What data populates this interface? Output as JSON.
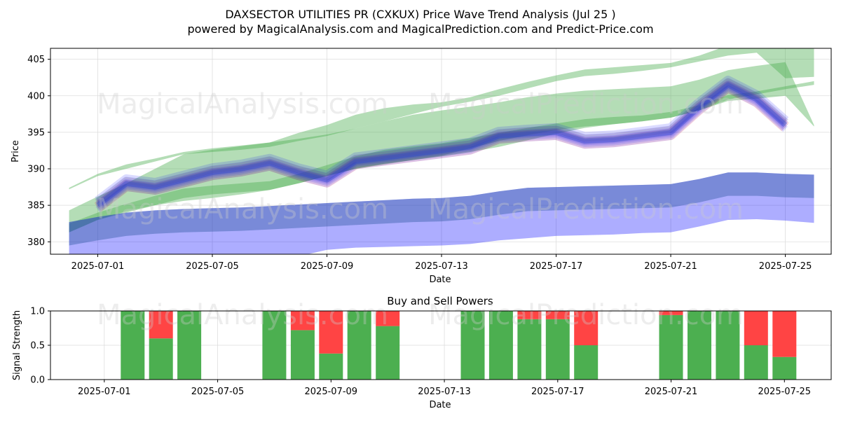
{
  "title_line1": "DAXSECTOR UTILITIES PR (CXKUX) Price Wave Trend Analysis (Jul 25 )",
  "title_line2": "powered by MagicalAnalysis.com and MagicalPrediction.com and Predict-Price.com",
  "watermarks": {
    "top_left_upper": "MagicalAnalysis.com",
    "top_right_upper": "MagicalPrediction.com",
    "top_left_lower": "MagicalAnalysis.com",
    "top_right_lower": "MagicalPrediction.com",
    "bottom_left": "MagicalAnalysis.com",
    "bottom_right": "MagicalPrediction.com"
  },
  "colors": {
    "green_band": "#4caf50",
    "blue_band": "#0000ff",
    "red_band": "#ff0000",
    "buy_bar": "#4caf50",
    "sell_bar": "#ff4444",
    "grid": "#dddddd"
  },
  "chart_data": [
    {
      "type": "area",
      "title": "",
      "xlabel": "Date",
      "ylabel": "Price",
      "x_ticks": [
        "2025-07-01",
        "2025-07-05",
        "2025-07-09",
        "2025-07-13",
        "2025-07-17",
        "2025-07-21",
        "2025-07-25"
      ],
      "y_ticks": [
        380,
        385,
        390,
        395,
        400,
        405
      ],
      "xlim": [
        "2025-06-30",
        "2025-07-26"
      ],
      "ylim": [
        378.3,
        406.5
      ],
      "grid": true,
      "dates": [
        "2025-06-30",
        "2025-07-01",
        "2025-07-02",
        "2025-07-03",
        "2025-07-04",
        "2025-07-05",
        "2025-07-06",
        "2025-07-07",
        "2025-07-08",
        "2025-07-09",
        "2025-07-10",
        "2025-07-11",
        "2025-07-12",
        "2025-07-13",
        "2025-07-14",
        "2025-07-15",
        "2025-07-16",
        "2025-07-17",
        "2025-07-18",
        "2025-07-19",
        "2025-07-20",
        "2025-07-21",
        "2025-07-22",
        "2025-07-23",
        "2025-07-24",
        "2025-07-25",
        "2025-07-26"
      ],
      "series": [
        {
          "kind": "green_band_upper",
          "low": [
            387.2,
            389.0,
            390.0,
            391.0,
            392.0,
            392.3,
            392.6,
            393.0,
            393.8,
            394.5,
            395.5,
            396.5,
            397.5,
            398.5,
            399.2,
            400.0,
            401.0,
            402.0,
            402.7,
            403.0,
            403.4,
            403.9,
            404.7,
            405.5,
            405.9,
            402.4,
            402.6
          ],
          "high": [
            387.4,
            389.3,
            390.6,
            391.4,
            392.3,
            392.8,
            393.2,
            393.6,
            394.9,
            396.0,
            397.4,
            398.3,
            398.8,
            399.1,
            399.8,
            400.9,
            401.9,
            402.8,
            403.6,
            403.9,
            404.2,
            404.5,
            405.5,
            406.9,
            406.8,
            406.5,
            406.6
          ]
        },
        {
          "kind": "green_band_middle",
          "low": [
            381.3,
            383.0,
            384.0,
            385.0,
            386.0,
            386.5,
            386.8,
            387.1,
            388.0,
            389.0,
            390.0,
            390.7,
            391.2,
            391.7,
            392.3,
            393.0,
            393.9,
            394.8,
            395.6,
            396.1,
            396.5,
            397.0,
            398.0,
            399.5,
            400.2,
            400.9,
            401.5
          ],
          "high": [
            382.5,
            384.0,
            385.2,
            386.3,
            387.3,
            387.7,
            388.0,
            388.3,
            389.3,
            390.5,
            391.7,
            392.6,
            393.1,
            393.5,
            394.2,
            394.9,
            395.6,
            396.2,
            396.8,
            397.1,
            397.3,
            397.8,
            398.7,
            400.1,
            400.6,
            401.3,
            402.0
          ]
        },
        {
          "kind": "green_band_lower",
          "low": [
            381.3,
            383.0,
            384.2,
            385.0,
            385.6,
            386.0,
            386.5,
            387.1,
            388.0,
            389.0,
            390.0,
            390.6,
            391.2,
            391.8,
            392.8,
            393.8,
            394.6,
            395.3,
            395.8,
            396.1,
            396.5,
            397.0,
            398.0,
            399.3,
            399.6,
            400.0,
            395.8
          ],
          "high": [
            384.3,
            386.2,
            388.0,
            390.0,
            392.0,
            392.6,
            393.1,
            393.6,
            394.1,
            394.7,
            395.5,
            396.5,
            397.4,
            398.0,
            398.5,
            399.1,
            399.8,
            400.3,
            400.7,
            400.9,
            401.1,
            401.3,
            402.2,
            403.5,
            404.1,
            404.6,
            396.0
          ]
        },
        {
          "kind": "blue_band",
          "low": [
            378.0,
            378.0,
            378.0,
            378.0,
            378.0,
            378.0,
            378.0,
            378.0,
            378.0,
            378.9,
            379.2,
            379.3,
            379.4,
            379.5,
            379.7,
            380.2,
            380.5,
            380.8,
            380.9,
            381.0,
            381.2,
            381.3,
            382.1,
            383.0,
            383.1,
            382.9,
            382.6
          ],
          "high": [
            382.7,
            383.4,
            384.0,
            384.3,
            384.5,
            384.6,
            384.7,
            384.9,
            385.1,
            385.3,
            385.5,
            385.7,
            385.9,
            386.0,
            386.3,
            386.9,
            387.4,
            387.5,
            387.6,
            387.7,
            387.8,
            387.9,
            388.6,
            389.5,
            389.5,
            389.3,
            389.2
          ]
        },
        {
          "kind": "price_wave",
          "values": [
            null,
            385.0,
            388.0,
            387.5,
            388.5,
            389.5,
            390.0,
            390.8,
            389.5,
            388.5,
            391.0,
            391.5,
            392.0,
            392.5,
            393.0,
            394.5,
            394.8,
            395.0,
            393.8,
            394.0,
            394.5,
            395.0,
            398.5,
            401.5,
            399.5,
            396.0,
            null
          ]
        }
      ]
    },
    {
      "type": "bar",
      "title": "Buy and Sell Powers",
      "xlabel": "Date",
      "ylabel": "Signal Strength",
      "x_ticks": [
        "2025-07-01",
        "2025-07-05",
        "2025-07-09",
        "2025-07-13",
        "2025-07-17",
        "2025-07-21",
        "2025-07-25"
      ],
      "y_ticks": [
        "0.0",
        "0.5",
        "1.0"
      ],
      "ylim": [
        0,
        1
      ],
      "xlim": [
        "2025-06-30",
        "2025-07-26"
      ],
      "grid": true,
      "categories": [
        "2025-07-02",
        "2025-07-03",
        "2025-07-04",
        "2025-07-07",
        "2025-07-08",
        "2025-07-09",
        "2025-07-10",
        "2025-07-11",
        "2025-07-14",
        "2025-07-15",
        "2025-07-16",
        "2025-07-17",
        "2025-07-18",
        "2025-07-21",
        "2025-07-22",
        "2025-07-23",
        "2025-07-24",
        "2025-07-25"
      ],
      "series": [
        {
          "name": "Buy",
          "values": [
            1.0,
            0.6,
            1.0,
            1.0,
            0.72,
            0.38,
            1.0,
            0.78,
            1.0,
            1.0,
            0.88,
            0.88,
            0.5,
            0.94,
            1.0,
            1.0,
            0.5,
            0.33
          ]
        },
        {
          "name": "Sell",
          "values": [
            0.0,
            0.4,
            0.0,
            0.0,
            0.28,
            0.62,
            0.0,
            0.22,
            0.0,
            0.0,
            0.12,
            0.12,
            0.5,
            0.06,
            0.0,
            0.0,
            0.5,
            0.67
          ]
        }
      ]
    }
  ]
}
